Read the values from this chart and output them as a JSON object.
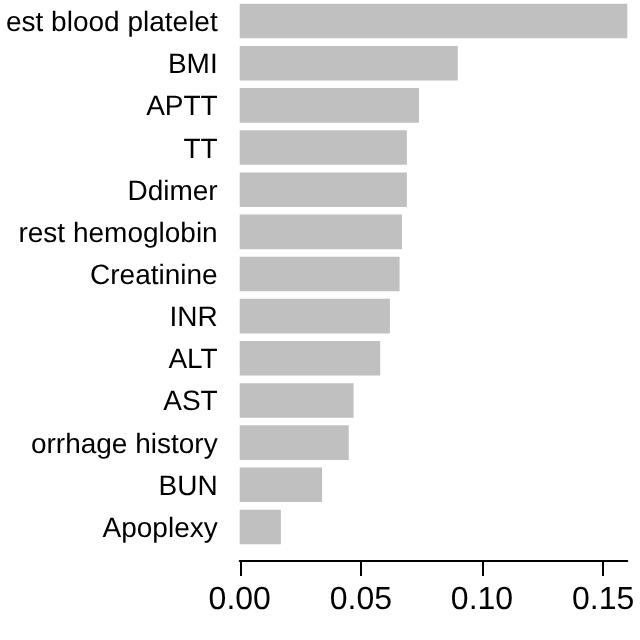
{
  "chart_data": {
    "type": "bar",
    "orientation": "horizontal",
    "categories": [
      "est blood platelet",
      "BMI",
      "APTT",
      "TT",
      "Ddimer",
      "rest hemoglobin",
      "Creatinine",
      "INR",
      "ALT",
      "AST",
      "orrhage history",
      "BUN",
      "Apoplexy"
    ],
    "values": [
      0.16,
      0.09,
      0.074,
      0.069,
      0.069,
      0.067,
      0.066,
      0.062,
      0.058,
      0.047,
      0.045,
      0.034,
      0.017
    ],
    "color": "#c0c0c0",
    "xlim": [
      0,
      0.16
    ],
    "xticks": [
      {
        "value": 0,
        "label": "0.00"
      },
      {
        "value": 0.05,
        "label": "0.05"
      },
      {
        "value": 0.1,
        "label": "0.10"
      },
      {
        "value": 0.15,
        "label": "0.15"
      }
    ],
    "grid": false
  }
}
